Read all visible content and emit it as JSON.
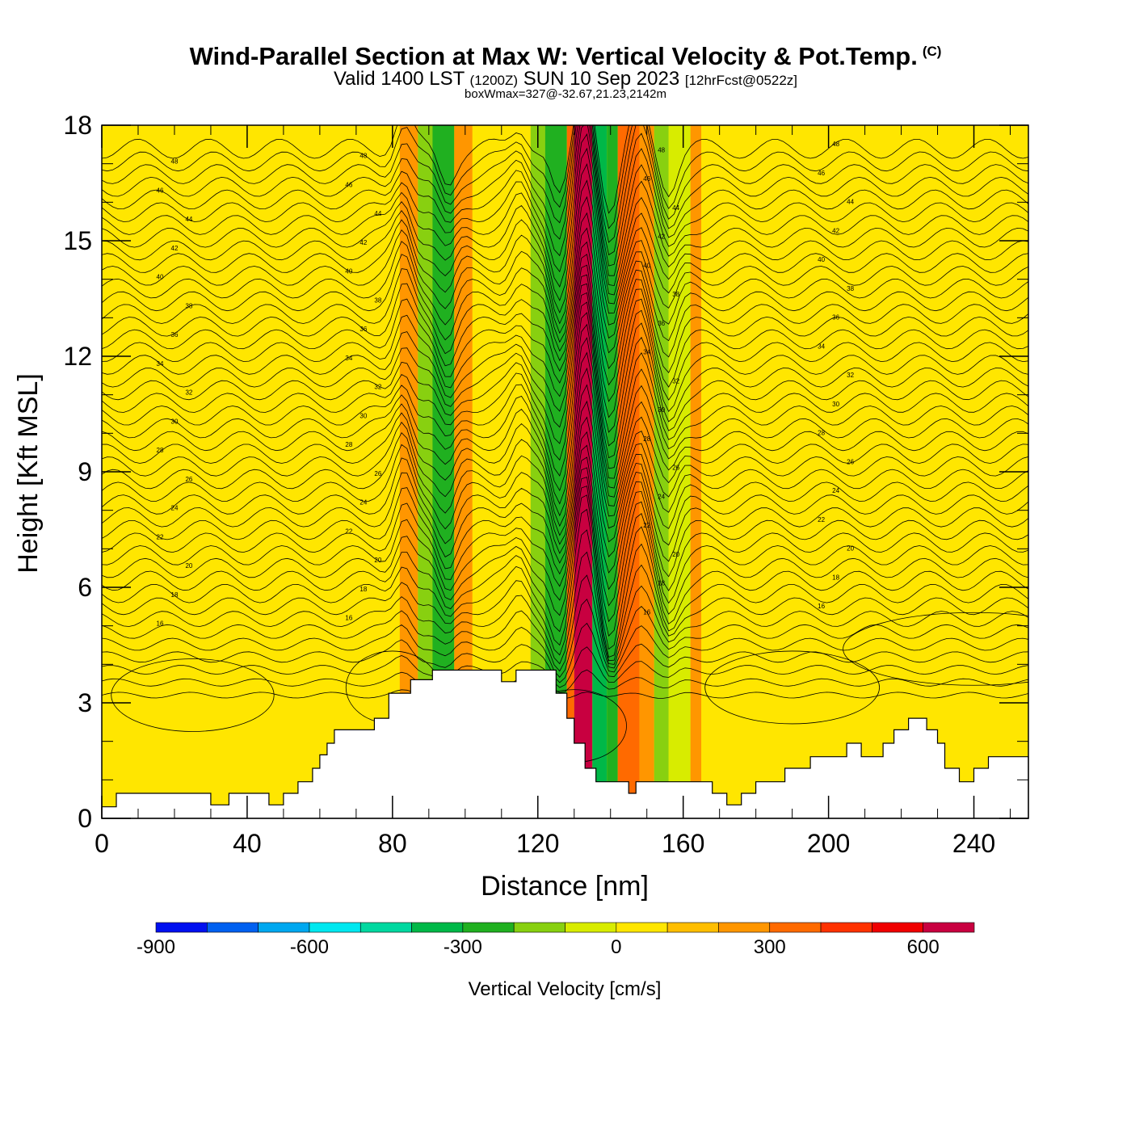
{
  "header": {
    "title": "Wind-Parallel Section at Max W: Vertical Velocity & Pot.Temp.",
    "copyright": "(C)",
    "valid_prefix": "Valid 1400 LST",
    "valid_z": "(1200Z)",
    "valid_date": "SUN 10 Sep 2023",
    "forecast": "[12hrFcst@0522z]",
    "box_wmax": "boxWmax=327@-32.67,21.23,2142m"
  },
  "chart_data": {
    "type": "heatmap",
    "xlabel": "Distance [nm]",
    "ylabel": "Height [Kft MSL]",
    "xlim": [
      0,
      255
    ],
    "ylim": [
      0,
      18
    ],
    "x_ticks": [
      0,
      40,
      80,
      120,
      160,
      200,
      240
    ],
    "y_ticks": [
      0,
      3,
      6,
      9,
      12,
      15,
      18
    ],
    "terrain_kft": [
      [
        0,
        0.3
      ],
      [
        4,
        0.3
      ],
      [
        4,
        0.65
      ],
      [
        30,
        0.65
      ],
      [
        30,
        0.35
      ],
      [
        35,
        0.35
      ],
      [
        35,
        0.65
      ],
      [
        46,
        0.65
      ],
      [
        46,
        0.35
      ],
      [
        50,
        0.35
      ],
      [
        50,
        0.65
      ],
      [
        54,
        0.65
      ],
      [
        54,
        0.95
      ],
      [
        58,
        0.95
      ],
      [
        58,
        1.3
      ],
      [
        60,
        1.3
      ],
      [
        60,
        1.65
      ],
      [
        62,
        1.65
      ],
      [
        62,
        1.95
      ],
      [
        64,
        1.95
      ],
      [
        64,
        2.3
      ],
      [
        75,
        2.3
      ],
      [
        75,
        2.6
      ],
      [
        79,
        2.6
      ],
      [
        79,
        3.25
      ],
      [
        85,
        3.25
      ],
      [
        85,
        3.6
      ],
      [
        91,
        3.6
      ],
      [
        91,
        3.85
      ],
      [
        110,
        3.85
      ],
      [
        110,
        3.55
      ],
      [
        114,
        3.55
      ],
      [
        114,
        3.85
      ],
      [
        125,
        3.85
      ],
      [
        125,
        3.25
      ],
      [
        128,
        3.25
      ],
      [
        128,
        2.6
      ],
      [
        130,
        2.6
      ],
      [
        130,
        1.95
      ],
      [
        133,
        1.95
      ],
      [
        133,
        1.3
      ],
      [
        136,
        1.3
      ],
      [
        136,
        0.95
      ],
      [
        145,
        0.95
      ],
      [
        145,
        0.65
      ],
      [
        147,
        0.65
      ],
      [
        147,
        0.95
      ],
      [
        168,
        0.95
      ],
      [
        168,
        0.65
      ],
      [
        172,
        0.65
      ],
      [
        172,
        0.35
      ],
      [
        176,
        0.35
      ],
      [
        176,
        0.65
      ],
      [
        180,
        0.65
      ],
      [
        180,
        0.95
      ],
      [
        188,
        0.95
      ],
      [
        188,
        1.3
      ],
      [
        195,
        1.3
      ],
      [
        195,
        1.6
      ],
      [
        205,
        1.6
      ],
      [
        205,
        1.95
      ],
      [
        209,
        1.95
      ],
      [
        209,
        1.6
      ],
      [
        215,
        1.6
      ],
      [
        215,
        1.95
      ],
      [
        218,
        1.95
      ],
      [
        218,
        2.3
      ],
      [
        222,
        2.3
      ],
      [
        222,
        2.6
      ],
      [
        227,
        2.6
      ],
      [
        227,
        2.3
      ],
      [
        230,
        2.3
      ],
      [
        230,
        1.95
      ],
      [
        232,
        1.95
      ],
      [
        232,
        1.3
      ],
      [
        236,
        1.3
      ],
      [
        236,
        0.95
      ],
      [
        240,
        0.95
      ],
      [
        240,
        1.3
      ],
      [
        244,
        1.3
      ],
      [
        244,
        1.6
      ],
      [
        255,
        1.6
      ]
    ],
    "vertical_velocity_bands": [
      {
        "x0": 0,
        "x1": 82,
        "w": 50
      },
      {
        "x0": 82,
        "x1": 87,
        "w": 250
      },
      {
        "x0": 87,
        "x1": 91,
        "w": -150
      },
      {
        "x0": 91,
        "x1": 97,
        "w": -250
      },
      {
        "x0": 97,
        "x1": 102,
        "w": 200
      },
      {
        "x0": 102,
        "x1": 118,
        "w": 50
      },
      {
        "x0": 118,
        "x1": 122,
        "w": -150
      },
      {
        "x0": 122,
        "x1": 128,
        "w": -280
      },
      {
        "x0": 128,
        "x1": 130,
        "w": 300
      },
      {
        "x0": 130,
        "x1": 135,
        "w": 620
      },
      {
        "x0": 135,
        "x1": 139,
        "w": -350
      },
      {
        "x0": 139,
        "x1": 142,
        "w": -250
      },
      {
        "x0": 142,
        "x1": 148,
        "w": 320
      },
      {
        "x0": 148,
        "x1": 152,
        "w": 200
      },
      {
        "x0": 152,
        "x1": 156,
        "w": -200
      },
      {
        "x0": 156,
        "x1": 162,
        "w": -100
      },
      {
        "x0": 162,
        "x1": 165,
        "w": 200
      },
      {
        "x0": 165,
        "x1": 255,
        "w": 50
      }
    ],
    "colorbar": {
      "label": "Vertical Velocity [cm/s]",
      "min": -900,
      "max": 700,
      "step": 100,
      "tick_labels": [
        "-900",
        "-600",
        "-300",
        "0",
        "300",
        "600"
      ],
      "colors": [
        "#0010f0",
        "#0060f0",
        "#00a8f0",
        "#00e8f0",
        "#00d8a0",
        "#00b848",
        "#20b020",
        "#88d010",
        "#d8ec00",
        "#ffe600",
        "#ffbe00",
        "#ff9600",
        "#ff6a00",
        "#ff3200",
        "#f00000",
        "#c80040"
      ]
    },
    "theta_labels": [
      "16",
      "18",
      "20",
      "22",
      "24",
      "26",
      "28",
      "30",
      "32",
      "34",
      "36",
      "38",
      "40",
      "42",
      "44",
      "46",
      "48"
    ]
  }
}
